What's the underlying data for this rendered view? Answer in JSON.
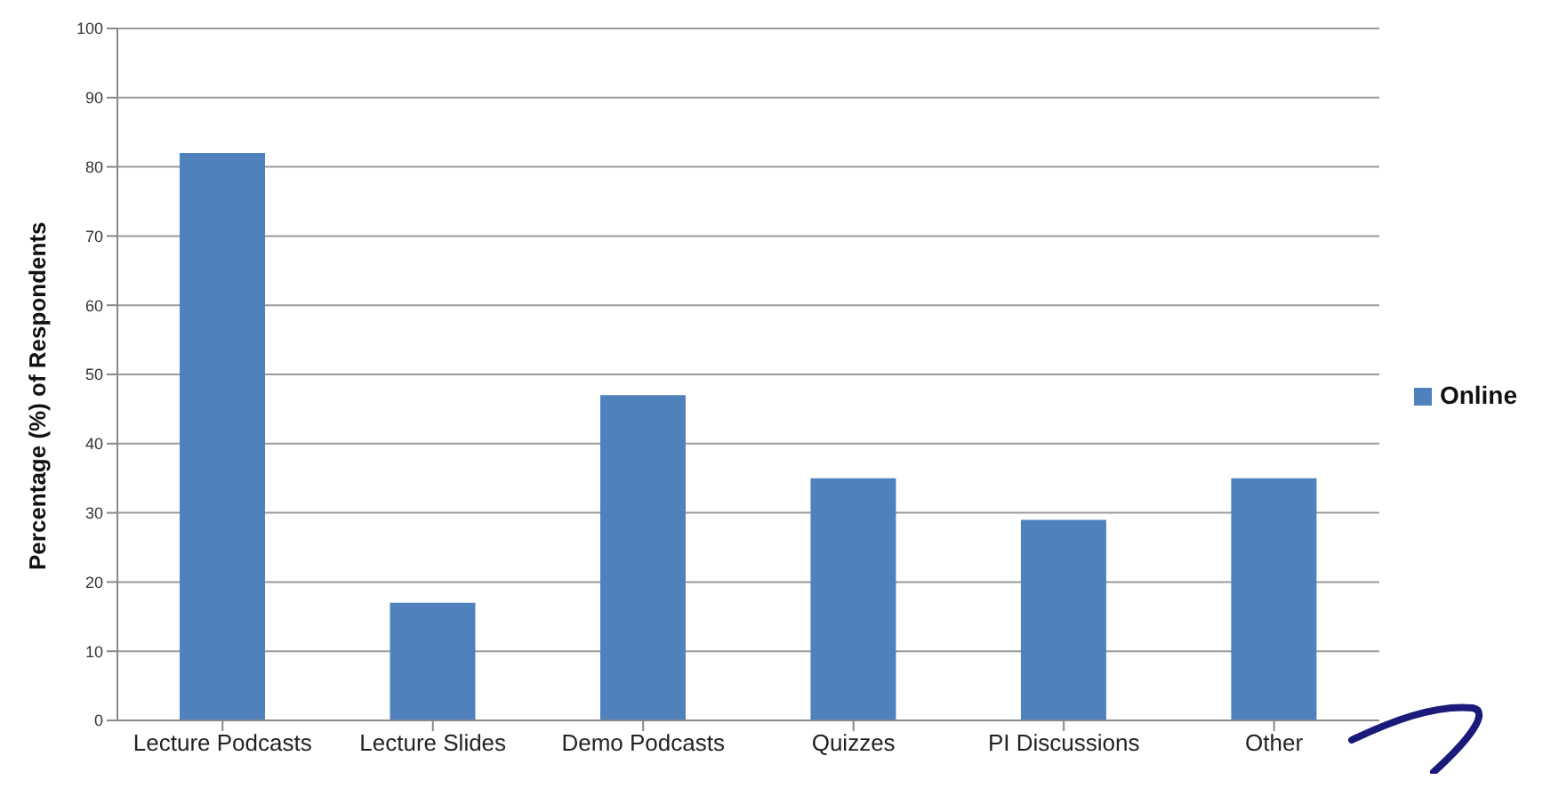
{
  "chart_data": {
    "type": "bar",
    "ylabel": "Percentage (%) of  Respondents",
    "categories": [
      "Lecture Podcasts",
      "Lecture Slides",
      "Demo Podcasts",
      "Quizzes",
      "PI Discussions",
      "Other"
    ],
    "series": [
      {
        "name": "Online",
        "color": "#4f81bd",
        "values": [
          82,
          17,
          47,
          35,
          29,
          35
        ]
      }
    ],
    "ylim": [
      0,
      100
    ],
    "yticks": [
      0,
      10,
      20,
      30,
      40,
      50,
      60,
      70,
      80,
      90,
      100
    ],
    "grid": "y",
    "legend": "right"
  }
}
